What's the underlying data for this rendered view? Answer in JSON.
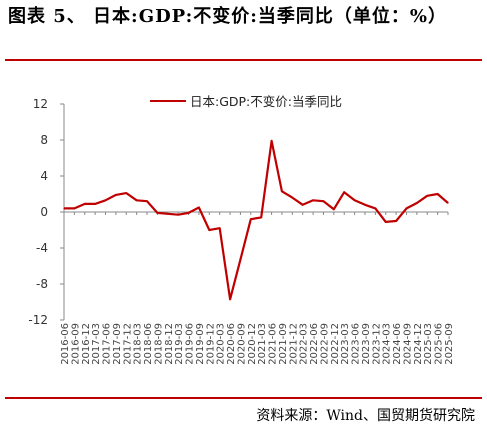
{
  "header": {
    "title": "图表 5、 日本:GDP:不变价:当季同比（单位：%）"
  },
  "footer": {
    "source": "资料来源：Wind、国贸期货研究院"
  },
  "colors": {
    "rule": "#c00000",
    "series": "#c00000"
  },
  "chart_data": {
    "type": "line",
    "series": [
      {
        "name": "日本:GDP:不变价:当季同比",
        "values": [
          0.4,
          0.4,
          0.9,
          0.9,
          1.3,
          1.9,
          2.1,
          1.3,
          1.2,
          -0.1,
          -0.2,
          -0.3,
          -0.1,
          0.5,
          -2.0,
          -1.8,
          -9.7,
          -5.3,
          -0.8,
          -0.6,
          7.9,
          2.3,
          1.6,
          0.8,
          1.3,
          1.2,
          0.3,
          2.2,
          1.3,
          0.8,
          0.4,
          -1.1,
          -1.0,
          0.4,
          1.0,
          1.8,
          2.0,
          1.0
        ]
      }
    ],
    "x": [
      "2016-06",
      "2016-09",
      "2016-12",
      "2017-03",
      "2017-06",
      "2017-09",
      "2017-12",
      "2018-03",
      "2018-06",
      "2018-09",
      "2018-12",
      "2019-03",
      "2019-06",
      "2019-09",
      "2019-12",
      "2020-03",
      "2020-06",
      "2020-09",
      "2020-12",
      "2021-03",
      "2021-06",
      "2021-09",
      "2021-12",
      "2022-03",
      "2022-06",
      "2022-09",
      "2022-12",
      "2023-03",
      "2023-06",
      "2023-09",
      "2023-12",
      "2024-03",
      "2024-06",
      "2024-09",
      "2024-12",
      "2025-03",
      "2025-06",
      "2025-09"
    ],
    "x_ticklabels": [
      "2016-06",
      "2016-09",
      "2016-12",
      "2017-03",
      "2017-06",
      "2017-09",
      "2017-12",
      "2018-03",
      "2018-06",
      "2018-09",
      "2018-12",
      "2019-03",
      "2019-06",
      "2019-09",
      "2019-12",
      "2020-03",
      "2020-06",
      "2020-09",
      "2020-12",
      "2021-03",
      "2021-06",
      "2021-09",
      "2021-12",
      "2022-03",
      "2022-06",
      "2022-09",
      "2022-12",
      "2023-03",
      "2023-06",
      "2023-09",
      "2023-12",
      "2024-03",
      "2024-06",
      "2024-09",
      "2024-12",
      "2025-03",
      "2025-06",
      "2025-09"
    ],
    "yticks": [
      "12",
      "8",
      "4",
      "0",
      "-4",
      "-8",
      "-12"
    ],
    "ylim": [
      -12,
      12
    ],
    "legend_position": "top-center",
    "grid": false
  }
}
